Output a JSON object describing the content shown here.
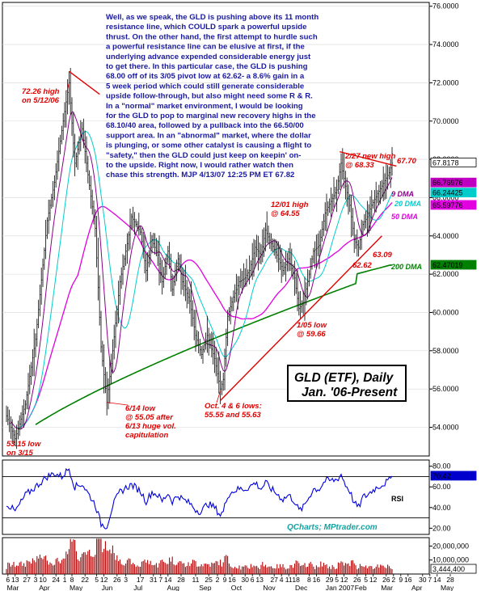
{
  "chart_data": {
    "type": "candlestick",
    "title": "GLD (ETF), Daily",
    "subtitle": "Jan. '06-Present",
    "source": "QCharts; MPtrader.com",
    "commentary": [
      "Well, as we speak, the GLD is pushing above its 11 month",
      "resistance line, which COULD spark a powerful upside",
      "thrust. On the other hand, the first attempt to hurdle such",
      "a powerful resistance line can be elusive at first, if the",
      "underlying advance expended considerable energy just",
      "to get there. In this particular case, the GLD is pushing",
      "68.00 off of its 3/05 pivot low at 62.62- a 8.6% gain in a",
      "5 week period which could still generate considerable",
      "upside follow-through, but also might need some R & R.",
      "In a \"normal\" market environment, I would be looking",
      "for the GLD to pop to marginal new recovery highs in the",
      "68.10/40 area, followed by a pullback into the 66.50/00",
      "support area. In an \"abnormal\" market, where the dollar",
      "is plunging, or some other catalyst is causing a flight to",
      "\"safety,\" then the GLD could just keep on keepin' on-",
      "to the upside. Right now, I would rather watch then",
      "chase this strength.  MJP 4/13/07 12:25 PM ET 67.82"
    ],
    "annotations": [
      {
        "id": "ann-high-0512",
        "lines": [
          "72.26 high",
          "on 5/12/06"
        ]
      },
      {
        "id": "ann-low-0315",
        "lines": [
          "53.15 low",
          "on 3/15"
        ]
      },
      {
        "id": "ann-low-0614",
        "lines": [
          "6/14 low",
          "@ 55.05 after",
          "6/13 huge vol.",
          "capitulation"
        ]
      },
      {
        "id": "ann-oct-lows",
        "lines": [
          "Oct. 4 & 6 lows:",
          "55.55 and 55.63"
        ]
      },
      {
        "id": "ann-high-1201",
        "lines": [
          "12/01 high",
          "@ 64.55"
        ]
      },
      {
        "id": "ann-low-0105",
        "lines": [
          "1/05 low",
          "@ 59.66"
        ]
      },
      {
        "id": "ann-high-0227",
        "lines": [
          "2/27 new high",
          "@ 68.33"
        ]
      },
      {
        "id": "ann-6309",
        "lines": [
          "63.09"
        ]
      },
      {
        "id": "ann-6262",
        "lines": [
          "62.62"
        ]
      },
      {
        "id": "ann-6770",
        "lines": [
          "67.70"
        ]
      }
    ],
    "moving_averages": [
      {
        "name": "9 DMA",
        "color": "#8a008a"
      },
      {
        "name": "20 DMA",
        "color": "#00cccc"
      },
      {
        "name": "50 DMA",
        "color": "#e000e0"
      },
      {
        "name": "200 DMA",
        "color": "#008000"
      }
    ],
    "price_axis": {
      "ylim": [
        52.5,
        76.2
      ],
      "ticks": [
        "76.0000",
        "74.0000",
        "72.0000",
        "70.0000",
        "68.0000",
        "66.0000",
        "64.0000",
        "62.0000",
        "60.0000",
        "58.0000",
        "56.0000",
        "54.0000"
      ],
      "tick_values": [
        76,
        74,
        72,
        70,
        68,
        66,
        64,
        62,
        60,
        58,
        56,
        54
      ]
    },
    "last_values": [
      {
        "label": "67.8178",
        "value": 67.8178,
        "bg": "#ffffff",
        "fg": "#000000"
      },
      {
        "label": "66.76976",
        "value": 66.76976,
        "bg": "#c000c0",
        "fg": "#ffffff"
      },
      {
        "label": "66.24425",
        "value": 66.24425,
        "bg": "#00cccc",
        "fg": "#ffffff"
      },
      {
        "label": "65.59776",
        "value": 65.59776,
        "bg": "#e000e0",
        "fg": "#ffffff"
      },
      {
        "label": "62.47019",
        "value": 62.47019,
        "bg": "#008000",
        "fg": "#ffffff"
      }
    ],
    "rsi": {
      "label": "RSI",
      "ylim": [
        14,
        86
      ],
      "ticks": [
        "80.00",
        "60.00",
        "40.00",
        "20.00"
      ],
      "tick_values": [
        80,
        60,
        40,
        20
      ],
      "reference_lines": [
        70,
        30
      ],
      "last": "70.42",
      "last_value": 70.42
    },
    "volume": {
      "ticks": [
        "20,000,000",
        "10,000,000"
      ],
      "tick_values": [
        20000000,
        10000000
      ],
      "ymax": 26000000,
      "last": "3,444,400",
      "last_value": 3444400
    },
    "x_axis": {
      "ticks": [
        {
          "label": "6",
          "i": 1
        },
        {
          "label": "13",
          "i": 6
        },
        {
          "label": "27",
          "i": 14
        },
        {
          "label": "3",
          "i": 20
        },
        {
          "label": "10",
          "i": 25
        },
        {
          "label": "24",
          "i": 34
        },
        {
          "label": "1",
          "i": 40
        },
        {
          "label": "8",
          "i": 45
        },
        {
          "label": "22",
          "i": 54
        },
        {
          "label": "5",
          "i": 62
        },
        {
          "label": "12",
          "i": 67
        },
        {
          "label": "26",
          "i": 76
        },
        {
          "label": "3",
          "i": 82
        },
        {
          "label": "17",
          "i": 92
        },
        {
          "label": "31",
          "i": 101
        },
        {
          "label": "7",
          "i": 106
        },
        {
          "label": "14",
          "i": 111
        },
        {
          "label": "28",
          "i": 120
        },
        {
          "label": "11",
          "i": 130
        },
        {
          "label": "25",
          "i": 139
        },
        {
          "label": "2",
          "i": 145
        },
        {
          "label": "9",
          "i": 150
        },
        {
          "label": "16",
          "i": 155
        },
        {
          "label": "30",
          "i": 164
        },
        {
          "label": "6",
          "i": 169
        },
        {
          "label": "13",
          "i": 174
        },
        {
          "label": "27",
          "i": 184
        },
        {
          "label": "4",
          "i": 189
        },
        {
          "label": "11",
          "i": 194
        },
        {
          "label": "18",
          "i": 199
        },
        {
          "label": "8",
          "i": 208
        },
        {
          "label": "16",
          "i": 213
        },
        {
          "label": "29",
          "i": 222
        },
        {
          "label": "5",
          "i": 227
        },
        {
          "label": "12",
          "i": 232
        },
        {
          "label": "26",
          "i": 241
        },
        {
          "label": "5",
          "i": 247
        },
        {
          "label": "12",
          "i": 252
        },
        {
          "label": "26",
          "i": 261
        },
        {
          "label": "2",
          "i": 266
        },
        {
          "label": "9",
          "i": 271
        },
        {
          "label": "16",
          "i": 276
        },
        {
          "label": "30",
          "i": 286
        },
        {
          "label": "7",
          "i": 291
        },
        {
          "label": "14",
          "i": 296
        },
        {
          "label": "28",
          "i": 305
        }
      ],
      "months": [
        {
          "label": "Mar",
          "i": 2
        },
        {
          "label": "Apr",
          "i": 24
        },
        {
          "label": "May",
          "i": 45
        },
        {
          "label": "Jun",
          "i": 67
        },
        {
          "label": "Jul",
          "i": 89
        },
        {
          "label": "Aug",
          "i": 112
        },
        {
          "label": "Sep",
          "i": 134
        },
        {
          "label": "Oct",
          "i": 156
        },
        {
          "label": "Nov",
          "i": 178
        },
        {
          "label": "Dec",
          "i": 200
        },
        {
          "label": "Jan 2007",
          "i": 221
        },
        {
          "label": "Feb",
          "i": 241
        },
        {
          "label": "Mar",
          "i": 259
        },
        {
          "label": "Apr",
          "i": 280
        },
        {
          "label": "May",
          "i": 300
        }
      ]
    },
    "price_keypoints": [
      [
        0,
        54.6
      ],
      [
        6,
        53.4
      ],
      [
        13,
        55.2
      ],
      [
        20,
        58.6
      ],
      [
        28,
        64.8
      ],
      [
        33,
        66.8
      ],
      [
        38,
        69.5
      ],
      [
        43,
        72.0
      ],
      [
        47,
        67.8
      ],
      [
        52,
        69.6
      ],
      [
        56,
        67.2
      ],
      [
        61,
        64.4
      ],
      [
        65,
        58.2
      ],
      [
        69,
        55.3
      ],
      [
        73,
        58.0
      ],
      [
        78,
        61.6
      ],
      [
        83,
        63.6
      ],
      [
        86,
        65.0
      ],
      [
        92,
        64.2
      ],
      [
        96,
        62.2
      ],
      [
        100,
        63.8
      ],
      [
        104,
        63.0
      ],
      [
        107,
        61.6
      ],
      [
        111,
        63.2
      ],
      [
        114,
        61.2
      ],
      [
        118,
        62.8
      ],
      [
        121,
        61.6
      ],
      [
        126,
        60.6
      ],
      [
        130,
        58.8
      ],
      [
        134,
        57.8
      ],
      [
        138,
        58.8
      ],
      [
        143,
        57.6
      ],
      [
        147,
        56.0
      ],
      [
        149,
        56.5
      ],
      [
        152,
        59.8
      ],
      [
        156,
        60.8
      ],
      [
        160,
        61.6
      ],
      [
        164,
        61.8
      ],
      [
        167,
        62.2
      ],
      [
        171,
        63.4
      ],
      [
        175,
        63.0
      ],
      [
        178,
        64.3
      ],
      [
        182,
        63.6
      ],
      [
        186,
        63.0
      ],
      [
        190,
        62.2
      ],
      [
        194,
        62.8
      ],
      [
        198,
        61.8
      ],
      [
        201,
        60.2
      ],
      [
        204,
        60.5
      ],
      [
        207,
        61.6
      ],
      [
        211,
        63.2
      ],
      [
        215,
        63.5
      ],
      [
        219,
        65.2
      ],
      [
        223,
        65.8
      ],
      [
        227,
        66.4
      ],
      [
        230,
        67.8
      ],
      [
        233,
        66.6
      ],
      [
        236,
        65.6
      ],
      [
        239,
        63.8
      ],
      [
        242,
        63.4
      ],
      [
        245,
        64.6
      ],
      [
        248,
        65.0
      ],
      [
        251,
        65.6
      ],
      [
        255,
        66.2
      ],
      [
        258,
        66.6
      ],
      [
        263,
        67.3
      ],
      [
        265,
        67.8
      ]
    ],
    "rsi_keypoints": [
      [
        0,
        44
      ],
      [
        6,
        36
      ],
      [
        13,
        52
      ],
      [
        20,
        60
      ],
      [
        28,
        70
      ],
      [
        33,
        73
      ],
      [
        38,
        70
      ],
      [
        43,
        78
      ],
      [
        47,
        60
      ],
      [
        52,
        63
      ],
      [
        56,
        54
      ],
      [
        61,
        43
      ],
      [
        65,
        24
      ],
      [
        69,
        22
      ],
      [
        73,
        42
      ],
      [
        78,
        55
      ],
      [
        83,
        60
      ],
      [
        86,
        62
      ],
      [
        92,
        56
      ],
      [
        96,
        46
      ],
      [
        100,
        55
      ],
      [
        104,
        52
      ],
      [
        107,
        46
      ],
      [
        111,
        54
      ],
      [
        114,
        46
      ],
      [
        118,
        52
      ],
      [
        121,
        48
      ],
      [
        126,
        44
      ],
      [
        130,
        38
      ],
      [
        134,
        36
      ],
      [
        138,
        44
      ],
      [
        143,
        40
      ],
      [
        147,
        33
      ],
      [
        149,
        36
      ],
      [
        152,
        52
      ],
      [
        156,
        56
      ],
      [
        160,
        58
      ],
      [
        164,
        58
      ],
      [
        167,
        60
      ],
      [
        171,
        64
      ],
      [
        175,
        58
      ],
      [
        178,
        64
      ],
      [
        182,
        58
      ],
      [
        186,
        53
      ],
      [
        190,
        48
      ],
      [
        194,
        52
      ],
      [
        198,
        46
      ],
      [
        201,
        37
      ],
      [
        204,
        40
      ],
      [
        207,
        48
      ],
      [
        211,
        58
      ],
      [
        215,
        58
      ],
      [
        219,
        66
      ],
      [
        223,
        66
      ],
      [
        227,
        67
      ],
      [
        230,
        72
      ],
      [
        233,
        62
      ],
      [
        236,
        56
      ],
      [
        239,
        44
      ],
      [
        242,
        40
      ],
      [
        245,
        50
      ],
      [
        248,
        52
      ],
      [
        251,
        56
      ],
      [
        255,
        60
      ],
      [
        258,
        62
      ],
      [
        263,
        66
      ],
      [
        265,
        70.4
      ]
    ]
  }
}
